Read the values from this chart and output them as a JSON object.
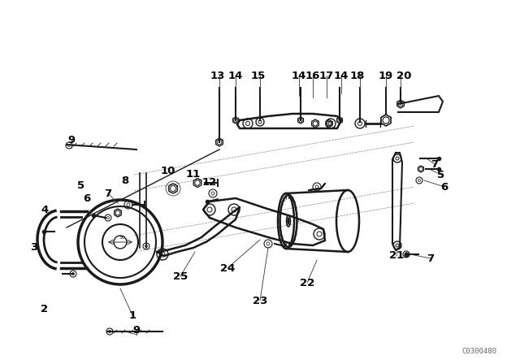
{
  "bg_color": "#ffffff",
  "line_color": "#1a1a1a",
  "label_color": "#000000",
  "watermark": "C0300480",
  "watermark_color": "#666666",
  "fig_width": 6.4,
  "fig_height": 4.48,
  "dpi": 100,
  "top_labels": [
    [
      "13",
      268,
      93
    ],
    [
      "14",
      290,
      93
    ],
    [
      "15",
      318,
      93
    ],
    [
      "14",
      368,
      93
    ],
    [
      "16",
      385,
      93
    ],
    [
      "17",
      402,
      93
    ],
    [
      "14",
      420,
      93
    ],
    [
      "18",
      440,
      93
    ],
    [
      "19",
      475,
      93
    ],
    [
      "20",
      497,
      93
    ]
  ],
  "part_labels": [
    [
      "1",
      163,
      388
    ],
    [
      "2",
      55,
      380
    ],
    [
      "3",
      42,
      305
    ],
    [
      "4",
      55,
      258
    ],
    [
      "5",
      100,
      228
    ],
    [
      "6",
      107,
      244
    ],
    [
      "7",
      133,
      238
    ],
    [
      "8",
      154,
      222
    ],
    [
      "9",
      88,
      172
    ],
    [
      "9",
      168,
      406
    ],
    [
      "10",
      207,
      210
    ],
    [
      "11",
      238,
      214
    ],
    [
      "12",
      258,
      224
    ],
    [
      "21",
      488,
      315
    ],
    [
      "22",
      378,
      348
    ],
    [
      "23",
      320,
      370
    ],
    [
      "24",
      280,
      330
    ],
    [
      "25",
      222,
      340
    ],
    [
      "7",
      535,
      202
    ],
    [
      "5",
      543,
      215
    ],
    [
      "6",
      547,
      230
    ],
    [
      "7",
      530,
      318
    ]
  ]
}
